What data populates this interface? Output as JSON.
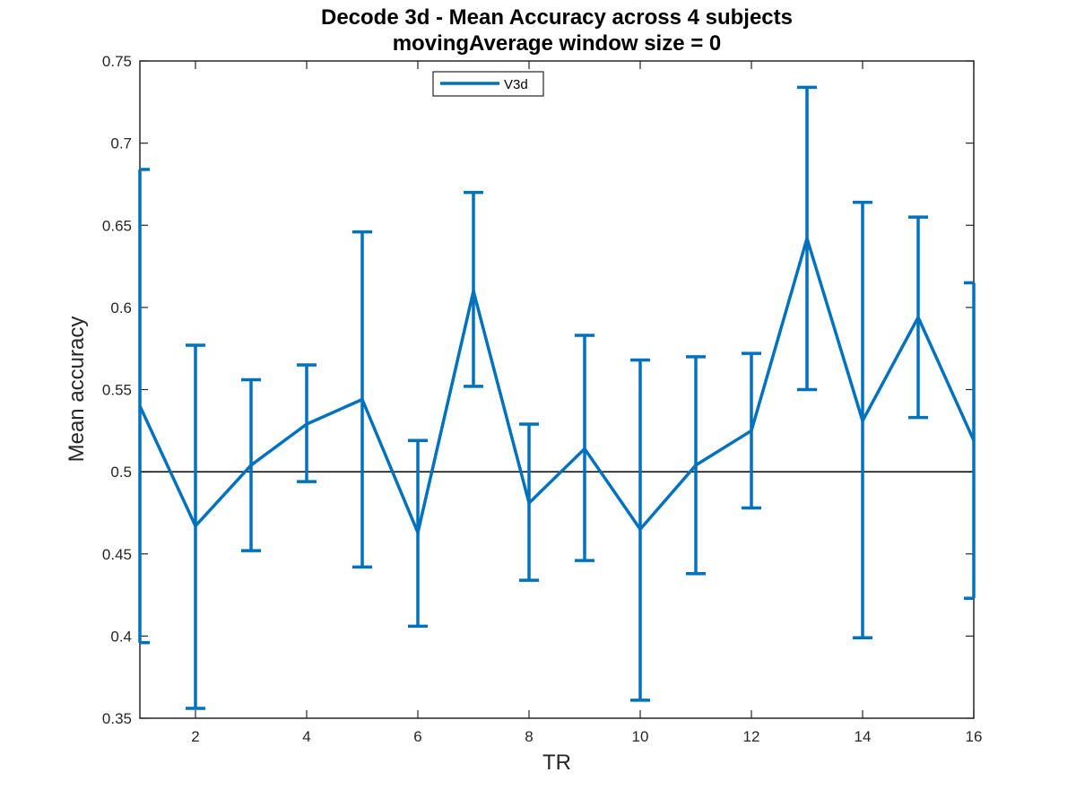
{
  "chart_data": {
    "type": "line",
    "title": "Decode 3d - Mean Accuracy across 4 subjects",
    "subtitle": "movingAverage window size = 0",
    "xlabel": "TR",
    "ylabel": "Mean accuracy",
    "xlim": [
      1,
      16
    ],
    "ylim": [
      0.35,
      0.75
    ],
    "xticks": [
      2,
      4,
      6,
      8,
      10,
      12,
      14,
      16
    ],
    "xtick_labels": [
      "2",
      "4",
      "6",
      "8",
      "10",
      "12",
      "14",
      "16"
    ],
    "yticks": [
      0.35,
      0.4,
      0.45,
      0.5,
      0.55,
      0.6,
      0.65,
      0.7,
      0.75
    ],
    "ytick_labels": [
      "0.35",
      "0.4",
      "0.45",
      "0.5",
      "0.55",
      "0.6",
      "0.65",
      "0.7",
      "0.75"
    ],
    "reference_line": 0.5,
    "legend_position": "top-center",
    "grid": false,
    "series": [
      {
        "name": "V3d",
        "color": "#0072bd",
        "x": [
          1,
          2,
          3,
          4,
          5,
          6,
          7,
          8,
          9,
          10,
          11,
          12,
          13,
          14,
          15,
          16
        ],
        "y": [
          0.54,
          0.467,
          0.504,
          0.529,
          0.544,
          0.463,
          0.61,
          0.481,
          0.514,
          0.465,
          0.504,
          0.525,
          0.642,
          0.531,
          0.594,
          0.519
        ],
        "err_low": [
          0.396,
          0.356,
          0.452,
          0.494,
          0.442,
          0.406,
          0.552,
          0.434,
          0.446,
          0.361,
          0.438,
          0.478,
          0.55,
          0.399,
          0.533,
          0.423
        ],
        "err_high": [
          0.684,
          0.577,
          0.556,
          0.565,
          0.646,
          0.519,
          0.67,
          0.529,
          0.583,
          0.568,
          0.57,
          0.572,
          0.734,
          0.664,
          0.655,
          0.615
        ]
      }
    ]
  }
}
